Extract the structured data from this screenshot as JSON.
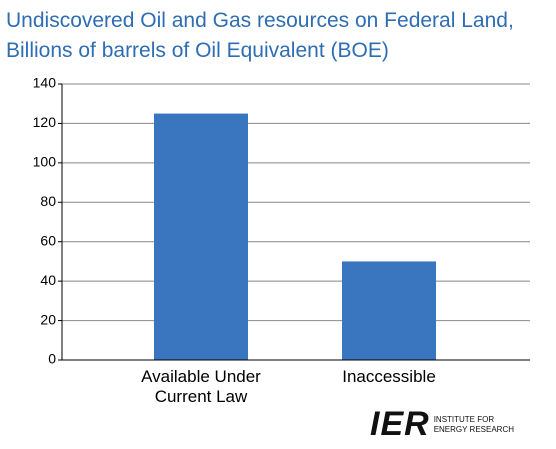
{
  "chart_data": {
    "type": "bar",
    "title": "Undiscovered Oil and Gas resources on Federal Land, Billions of barrels of Oil Equivalent (BOE)",
    "categories": [
      "Available Under Current Law",
      "Inaccessible"
    ],
    "values": [
      125,
      50
    ],
    "color": "#3a76bf",
    "ylim": [
      0,
      140
    ],
    "yticks": [
      0,
      20,
      40,
      60,
      80,
      100,
      120,
      140
    ],
    "grid": true
  },
  "logo": {
    "mark": "IER",
    "line1": "INSTITUTE FOR",
    "line2": "ENERGY RESEARCH"
  }
}
